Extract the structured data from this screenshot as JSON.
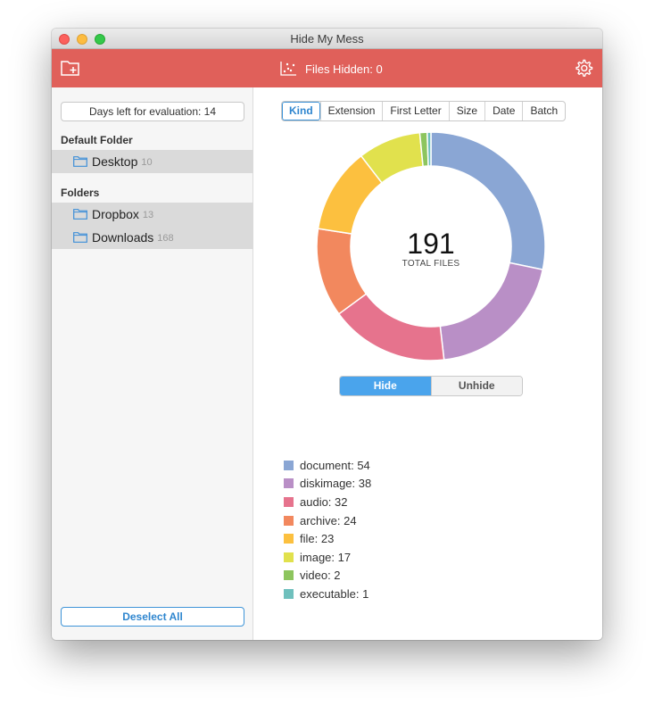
{
  "window": {
    "title": "Hide My Mess"
  },
  "toolbar": {
    "files_hidden_label": "Files Hidden: 0",
    "add_folder_icon": "add-folder-icon",
    "chart_icon": "scatter-chart-icon",
    "settings_icon": "gear-icon"
  },
  "sidebar": {
    "evaluation_text": "Days left for evaluation: 14",
    "default_folder_heading": "Default Folder",
    "default_folder": {
      "name": "Desktop",
      "count": "10"
    },
    "folders_heading": "Folders",
    "folders": [
      {
        "name": "Dropbox",
        "count": "13"
      },
      {
        "name": "Downloads",
        "count": "168"
      }
    ],
    "deselect_label": "Deselect All"
  },
  "main": {
    "tabs": [
      "Kind",
      "Extension",
      "First Letter",
      "Size",
      "Date",
      "Batch"
    ],
    "active_tab": "Kind",
    "total_files": "191",
    "total_label": "TOTAL FILES",
    "hide_label": "Hide",
    "unhide_label": "Unhide"
  },
  "chart_data": {
    "type": "pie",
    "categories": [
      "document",
      "diskimage",
      "audio",
      "archive",
      "file",
      "image",
      "video",
      "executable"
    ],
    "values": [
      54,
      38,
      32,
      24,
      23,
      17,
      2,
      1
    ],
    "colors": [
      "#8aa6d4",
      "#b98fc6",
      "#e6738d",
      "#f2885e",
      "#fcc03f",
      "#e1e14d",
      "#8dc55e",
      "#6fc0bd"
    ],
    "legend_labels": [
      "document: 54",
      "diskimage: 38",
      "audio: 32",
      "archive: 24",
      "file: 23",
      "image: 17",
      "video: 2",
      "executable: 1"
    ]
  }
}
